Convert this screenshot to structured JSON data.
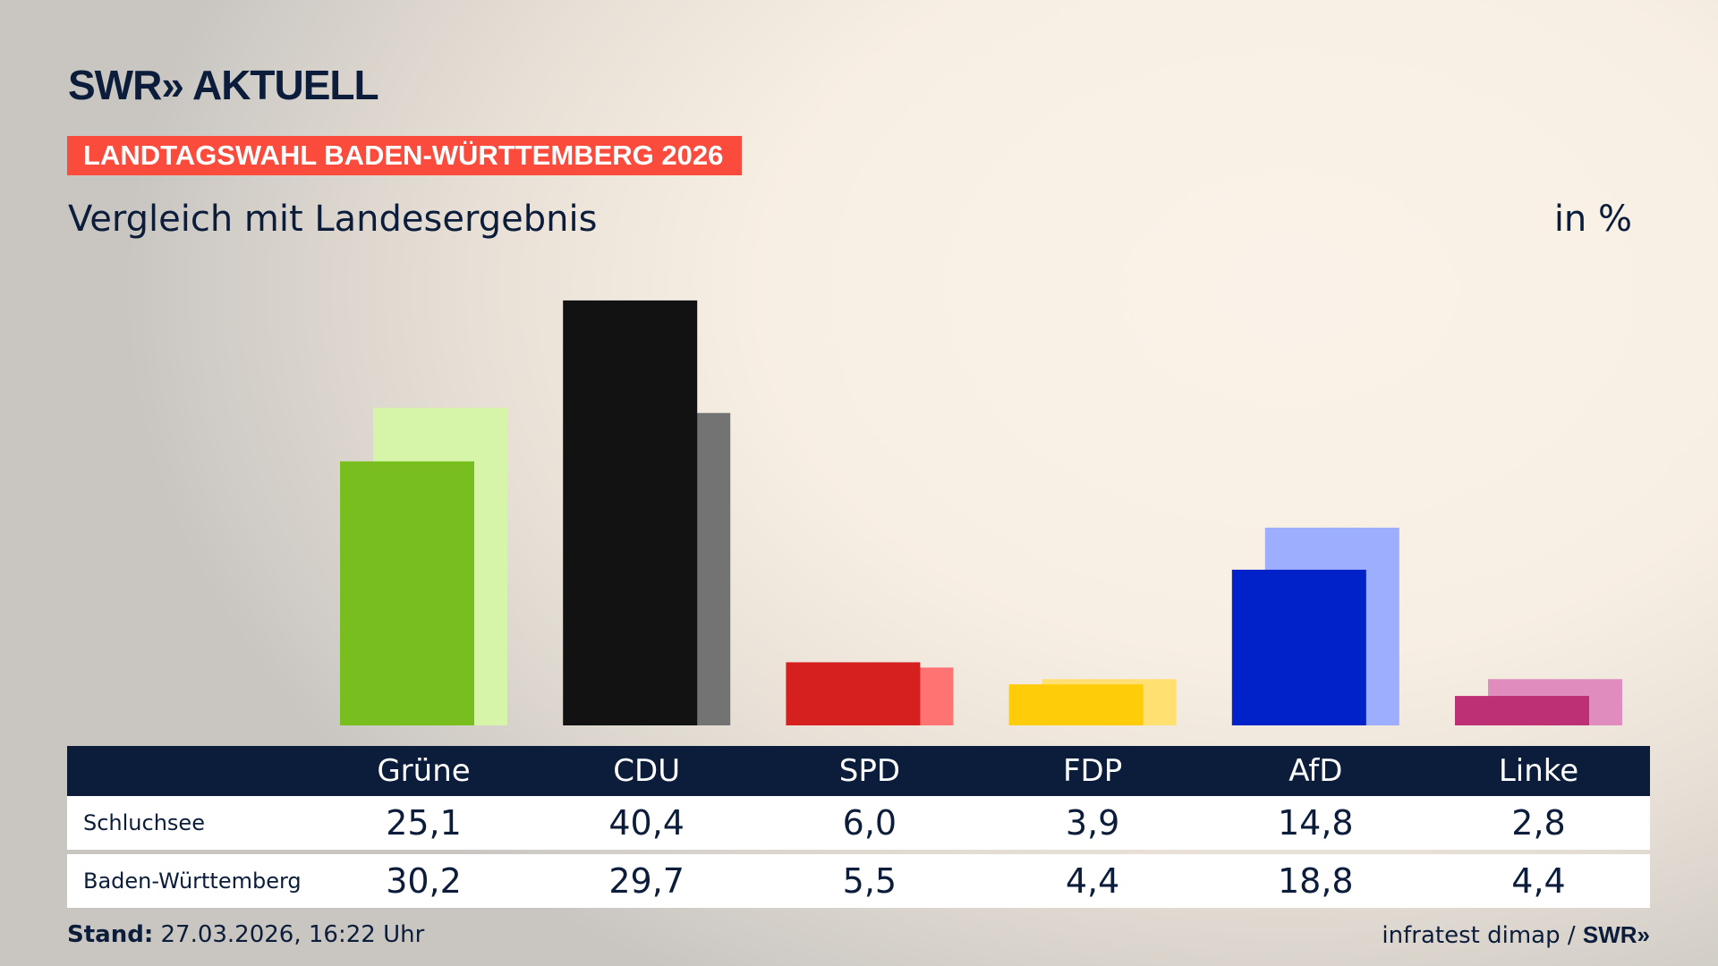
{
  "header": {
    "logo": "SWR» AKTUELL",
    "banner": "LANDTAGSWAHL BADEN-WÜRTTEMBERG 2026",
    "subtitle": "Vergleich mit Landesergebnis",
    "unit": "in %"
  },
  "chart_data": {
    "type": "bar",
    "categories": [
      "Grüne",
      "CDU",
      "SPD",
      "FDP",
      "AfD",
      "Linke"
    ],
    "series": [
      {
        "name": "Schluchsee",
        "values": [
          25.1,
          40.4,
          6.0,
          3.9,
          14.8,
          2.8
        ],
        "display": [
          "25,1",
          "40,4",
          "6,0",
          "3,9",
          "14,8",
          "2,8"
        ],
        "colors": [
          "#78be1e",
          "#121212",
          "#d61f1f",
          "#ffcc0a",
          "#0022c8",
          "#be3075"
        ]
      },
      {
        "name": "Baden-Württemberg",
        "values": [
          30.2,
          29.7,
          5.5,
          4.4,
          18.8,
          4.4
        ],
        "display": [
          "30,2",
          "29,7",
          "5,5",
          "4,4",
          "18,8",
          "4,4"
        ],
        "colors": [
          "#d6f5a8",
          "#737373",
          "#ff7373",
          "#ffe070",
          "#9daeff",
          "#e08cbf"
        ]
      }
    ],
    "grid": false
  },
  "footer": {
    "stand_label": "Stand:",
    "stand_value": "27.03.2026, 16:22 Uhr",
    "source": "infratest dimap / ",
    "source_logo": "SWR»"
  }
}
